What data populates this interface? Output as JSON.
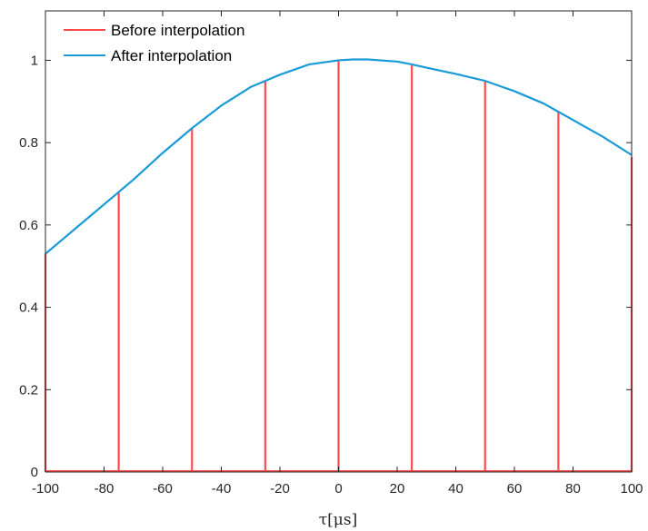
{
  "chart_data": {
    "type": "line",
    "xlabel": "τ[μs]",
    "ylabel": "",
    "xlim": [
      -100,
      100
    ],
    "ylim": [
      0,
      1.12
    ],
    "xticks": [
      -100,
      -80,
      -60,
      -40,
      -20,
      0,
      20,
      40,
      60,
      80,
      100
    ],
    "yticks": [
      0,
      0.2,
      0.4,
      0.6,
      0.8,
      1
    ],
    "xtick_labels": [
      "-100",
      "-80",
      "-60",
      "-40",
      "-20",
      "0",
      "20",
      "40",
      "60",
      "80",
      "100"
    ],
    "ytick_labels": [
      "0",
      "0.2",
      "0.4",
      "0.6",
      "0.8",
      "1"
    ],
    "legend_position": "top-left",
    "grid": false,
    "series": [
      {
        "name": "Before interpolation",
        "style": "stem",
        "color": "#ff4d4d",
        "x": [
          -100,
          -75,
          -50,
          -25,
          0,
          25,
          50,
          75,
          100
        ],
        "y": [
          0.53,
          0.68,
          0.835,
          0.95,
          1.0,
          0.99,
          0.95,
          0.875,
          0.765
        ]
      },
      {
        "name": "After interpolation",
        "style": "line",
        "color": "#1a9bd7",
        "x": [
          -100,
          -90,
          -80,
          -75,
          -70,
          -60,
          -50,
          -40,
          -30,
          -25,
          -20,
          -10,
          0,
          5,
          10,
          20,
          25,
          30,
          40,
          50,
          60,
          70,
          75,
          80,
          90,
          100
        ],
        "y": [
          0.53,
          0.59,
          0.65,
          0.68,
          0.71,
          0.775,
          0.835,
          0.89,
          0.935,
          0.95,
          0.965,
          0.99,
          1.0,
          1.002,
          1.002,
          0.997,
          0.99,
          0.982,
          0.967,
          0.95,
          0.925,
          0.895,
          0.875,
          0.855,
          0.815,
          0.77
        ]
      }
    ]
  }
}
